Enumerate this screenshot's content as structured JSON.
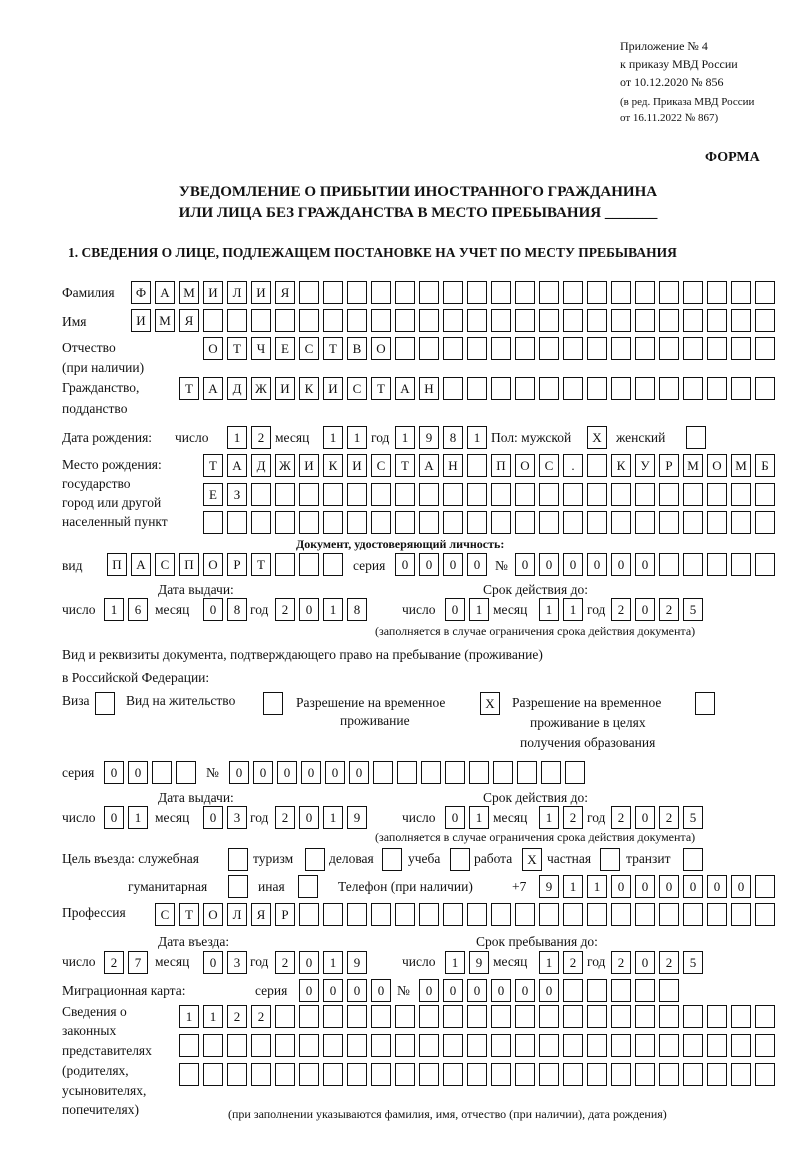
{
  "appendix": {
    "line1": "Приложение № 4",
    "line2": "к приказу МВД России",
    "line3": "от 10.12.2020 № 856",
    "line4": "(в ред. Приказа МВД России",
    "line5": "от 16.11.2022 № 867)"
  },
  "form_label": "ФОРМА",
  "title": {
    "line1": "УВЕДОМЛЕНИЕ О ПРИБЫТИИ ИНОСТРАННОГО ГРАЖДАНИНА",
    "line2": "ИЛИ ЛИЦА БЕЗ ГРАЖДАНСТВА В МЕСТО ПРЕБЫВАНИЯ _______"
  },
  "section1": "1. СВЕДЕНИЯ О ЛИЦЕ, ПОДЛЕЖАЩЕМ ПОСТАНОВКЕ НА УЧЕТ ПО МЕСТУ ПРЕБЫВАНИЯ",
  "labels": {
    "surname": "Фамилия",
    "name": "Имя",
    "patronymic": "Отчество",
    "patronymic2": "(при наличии)",
    "citizenship": "Гражданство,",
    "citizenship2": "подданство",
    "birth_date": "Дата рождения:",
    "day": "число",
    "month": "месяц",
    "year": "год",
    "sex": "Пол: мужской",
    "female": "женский",
    "birth_place1": "Место рождения:",
    "birth_place2": "государство",
    "birth_place3": "город или другой",
    "birth_place4": "населенный пункт",
    "id_doc": "Документ, удостоверяющий личность:",
    "kind": "вид",
    "series": "серия",
    "number": "№",
    "issue_date": "Дата выдачи:",
    "valid_until": "Срок действия до:",
    "valid_note": "(заполняется в случае ограничения срока действия документа)",
    "stay_doc1": "Вид и реквизиты документа, подтверждающего право на пребывание (проживание)",
    "stay_doc2": "в Российской Федерации:",
    "visa": "Виза",
    "residence": "Вид на жительство",
    "temp1": "Разрешение на временное",
    "temp2": "проживание",
    "edu1": "Разрешение на временное",
    "edu2": "проживание в целях",
    "edu3": "получения образования",
    "purpose": "Цель въезда: служебная",
    "tourism": "туризм",
    "business": "деловая",
    "study": "учеба",
    "work": "работа",
    "private": "частная",
    "transit": "транзит",
    "humanitarian": "гуманитарная",
    "other": "иная",
    "phone": "Телефон (при наличии)",
    "phone_code": "+7",
    "profession": "Профессия",
    "entry_date": "Дата въезда:",
    "stay_until": "Срок пребывания до:",
    "migration_card": "Миграционная карта:",
    "rep1": "Сведения о",
    "rep2": "законных",
    "rep3": "представителях",
    "rep4": "(родителях,",
    "rep5": "усыновителях,",
    "rep6": "попечителях)",
    "rep_note": "(при заполнении указываются фамилия, имя, отчество (при наличии), дата рождения)"
  },
  "cells": {
    "surname": "ФАМИЛИЯ",
    "name": "ИМЯ",
    "patronymic": "ОТЧЕСТВО",
    "citizenship": "ТАДЖИКИСТАН",
    "birth_day": "12",
    "birth_month": "11",
    "birth_year": "1981",
    "male": "X",
    "female": "",
    "birth_place1": [
      "Т",
      "А",
      "Д",
      "Ж",
      "И",
      "К",
      "И",
      "С",
      "Т",
      "А",
      "Н",
      "",
      "П",
      "О",
      "С",
      ".",
      "",
      "К",
      "У",
      "Р",
      "М",
      "О",
      "М",
      "Б"
    ],
    "birth_place2": "ЕЗ",
    "birth_place3": "",
    "doc_kind": "ПАСПОРТ",
    "doc_series": "0000",
    "doc_number": "000000",
    "doc_issue_day": "16",
    "doc_issue_month": "08",
    "doc_issue_year": "2018",
    "doc_valid_day": "01",
    "doc_valid_month": "11",
    "doc_valid_year": "2025",
    "visa": "",
    "residence": "",
    "temp_residence": "X",
    "edu_residence": "",
    "stay_series": "00",
    "stay_number": "000000",
    "stay_issue_day": "01",
    "stay_issue_month": "03",
    "stay_issue_year": "2019",
    "stay_valid_day": "01",
    "stay_valid_month": "12",
    "stay_valid_year": "2025",
    "p_service": "",
    "p_tourism": "",
    "p_business": "",
    "p_study": "",
    "p_work": "X",
    "p_private": "",
    "p_transit": "",
    "p_humanitarian": "",
    "p_other": "",
    "phone": "911000000",
    "profession": "СТОЛЯР",
    "entry_day": "27",
    "entry_month": "03",
    "entry_year": "2019",
    "until_day": "19",
    "until_month": "12",
    "until_year": "2025",
    "mc_series": "0000",
    "mc_number": "000000",
    "rep1": "1122",
    "rep2": "",
    "rep3": ""
  }
}
